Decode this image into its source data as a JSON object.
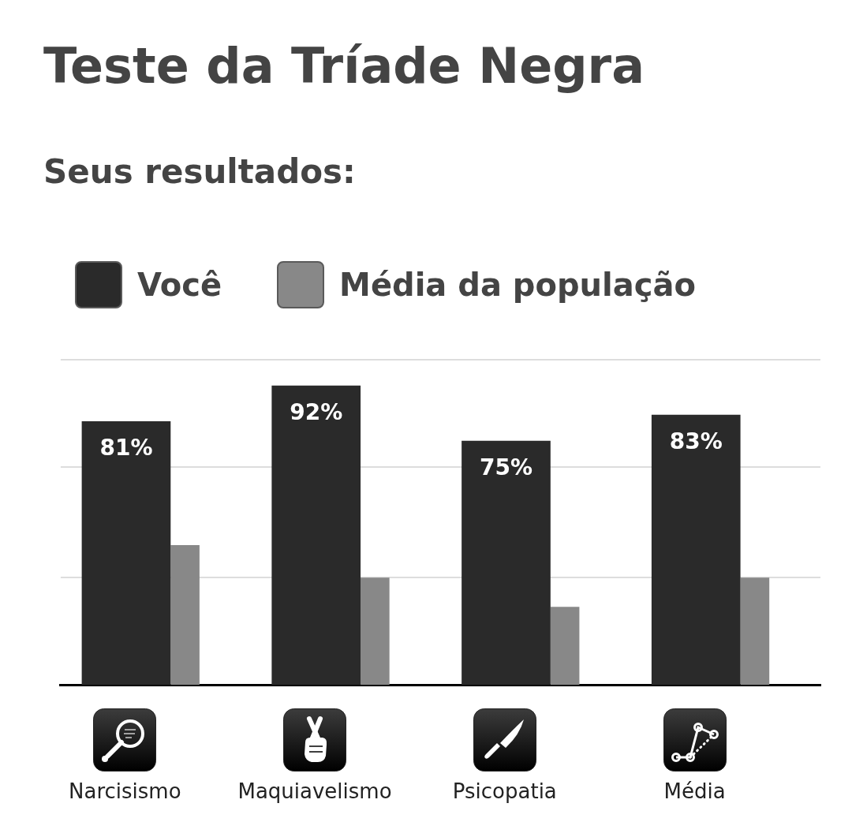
{
  "chart_data": {
    "type": "bar",
    "title": "Teste da Tríade Negra",
    "subtitle": "Seus resultados:",
    "categories": [
      "Narcisismo",
      "Maquiavelismo",
      "Psicopatia",
      "Média"
    ],
    "series": [
      {
        "name": "Você",
        "color": "#2a2a2a",
        "values": [
          81,
          92,
          75,
          83
        ],
        "value_labels": [
          "81%",
          "92%",
          "75%",
          "83%"
        ]
      },
      {
        "name": "Média da população",
        "color": "#888888",
        "values": [
          43,
          33,
          24,
          33
        ]
      }
    ],
    "ref_lines": [
      {
        "axis": "y",
        "value": 33,
        "color": "#dddddd"
      },
      {
        "axis": "y",
        "value": 67,
        "color": "#dddddd"
      },
      {
        "axis": "y",
        "value": 100,
        "color": "#dddddd"
      }
    ],
    "legend": "top left",
    "tick_labels": "x"
  }
}
